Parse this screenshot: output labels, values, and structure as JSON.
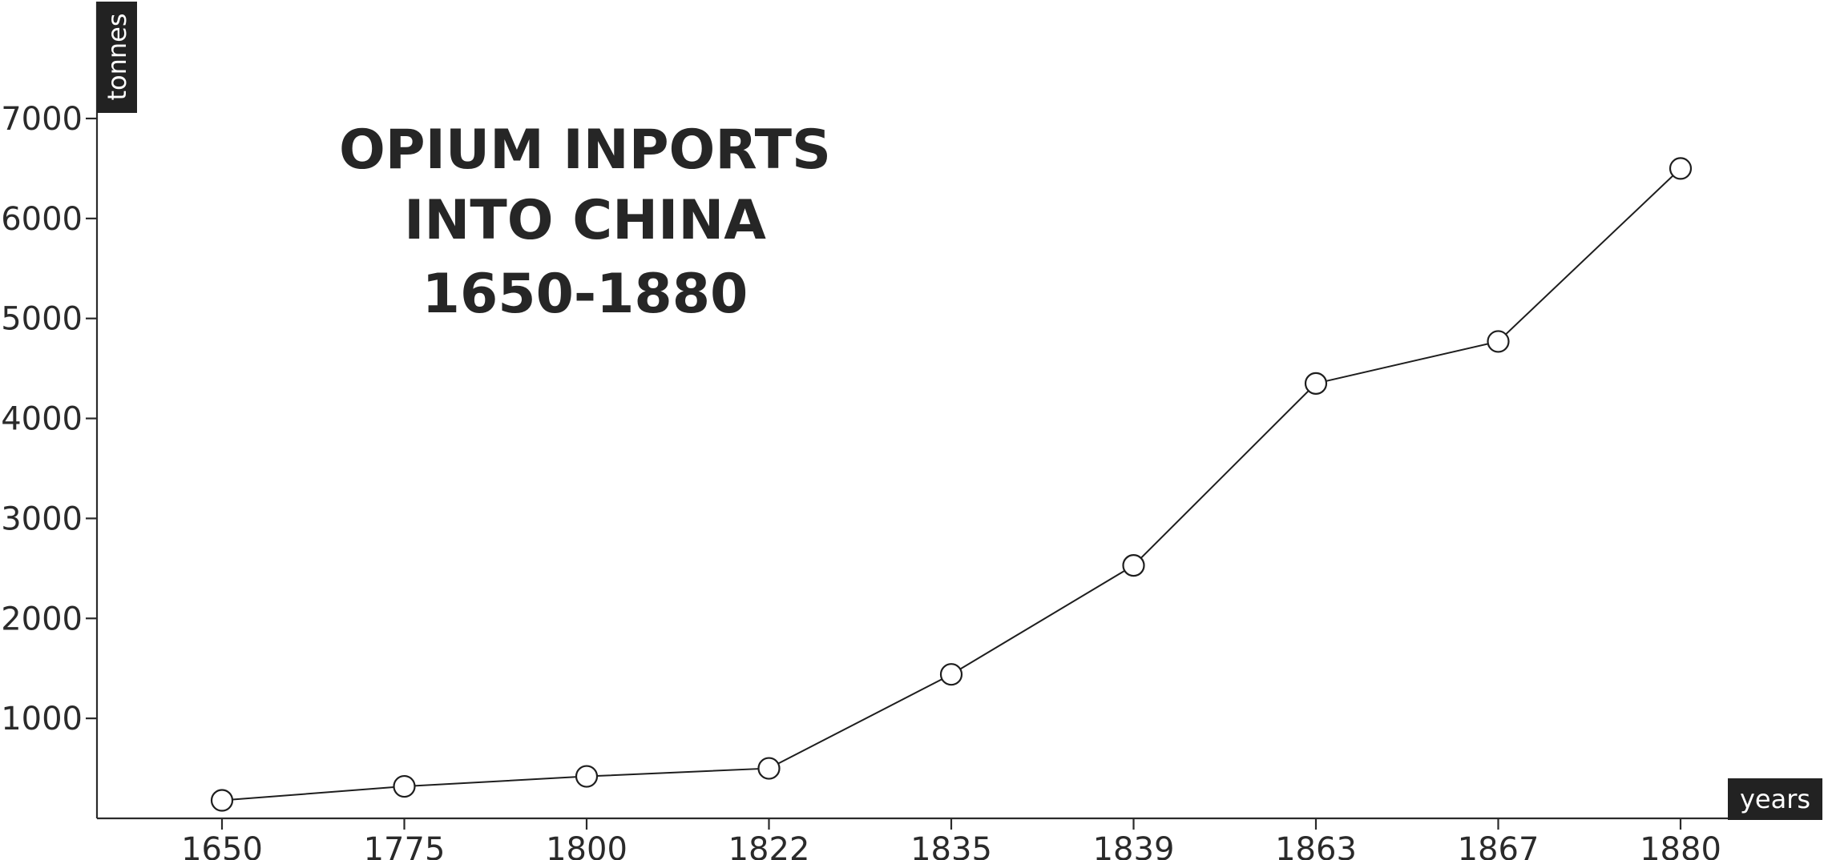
{
  "chart_data": {
    "type": "line",
    "title_lines": [
      "OPIUM INPORTS",
      "INTO CHINA",
      "1650-1880"
    ],
    "xlabel": "years",
    "ylabel": "tonnes",
    "categories": [
      "1650",
      "1775",
      "1800",
      "1822",
      "1835",
      "1839",
      "1863",
      "1867",
      "1880"
    ],
    "values": [
      180,
      320,
      420,
      500,
      1440,
      2530,
      4350,
      4770,
      6500
    ],
    "ylim": [
      0,
      7000
    ],
    "yticks": [
      1000,
      2000,
      3000,
      4000,
      5000,
      6000,
      7000
    ],
    "grid": false,
    "marker": "open-circle",
    "colors": {
      "line": "#1e1e1e",
      "axis": "#2a2a2a",
      "badge": "#222222",
      "marker_fill": "#ffffff"
    }
  }
}
